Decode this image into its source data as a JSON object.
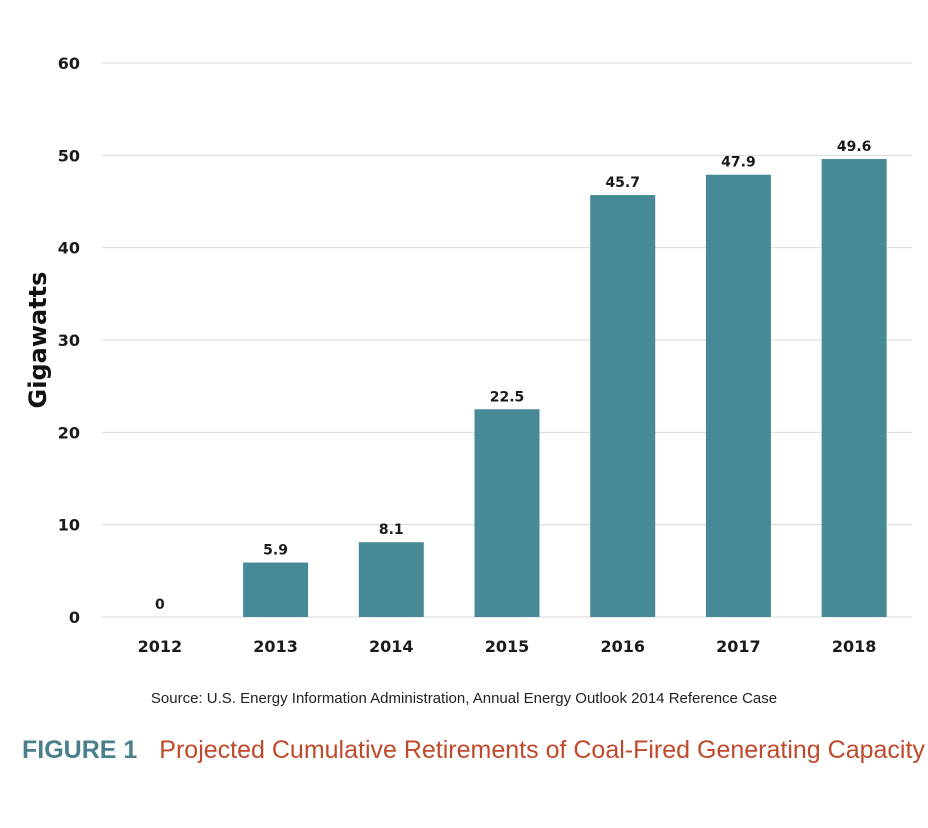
{
  "chart_data": {
    "type": "bar",
    "categories": [
      "2012",
      "2013",
      "2014",
      "2015",
      "2016",
      "2017",
      "2018"
    ],
    "values": [
      0,
      5.9,
      8.1,
      22.5,
      45.7,
      47.9,
      49.6
    ],
    "data_labels": [
      "0",
      "5.9",
      "8.1",
      "22.5",
      "45.7",
      "47.9",
      "49.6"
    ],
    "ylabel": "Gigawatts",
    "xlabel": "",
    "ylim": [
      0,
      60
    ],
    "yticks": [
      0,
      10,
      20,
      30,
      40,
      50,
      60
    ],
    "grid": true,
    "bar_color": "#468a97"
  },
  "source": "Source: U.S. Energy Information Administration, Annual Energy Outlook 2014 Reference Case",
  "caption": {
    "label": "FIGURE 1",
    "title": "Projected Cumulative Retirements of Coal-Fired Generating Capacity",
    "label_color": "#4a7f8c",
    "title_color": "#c0492b"
  }
}
